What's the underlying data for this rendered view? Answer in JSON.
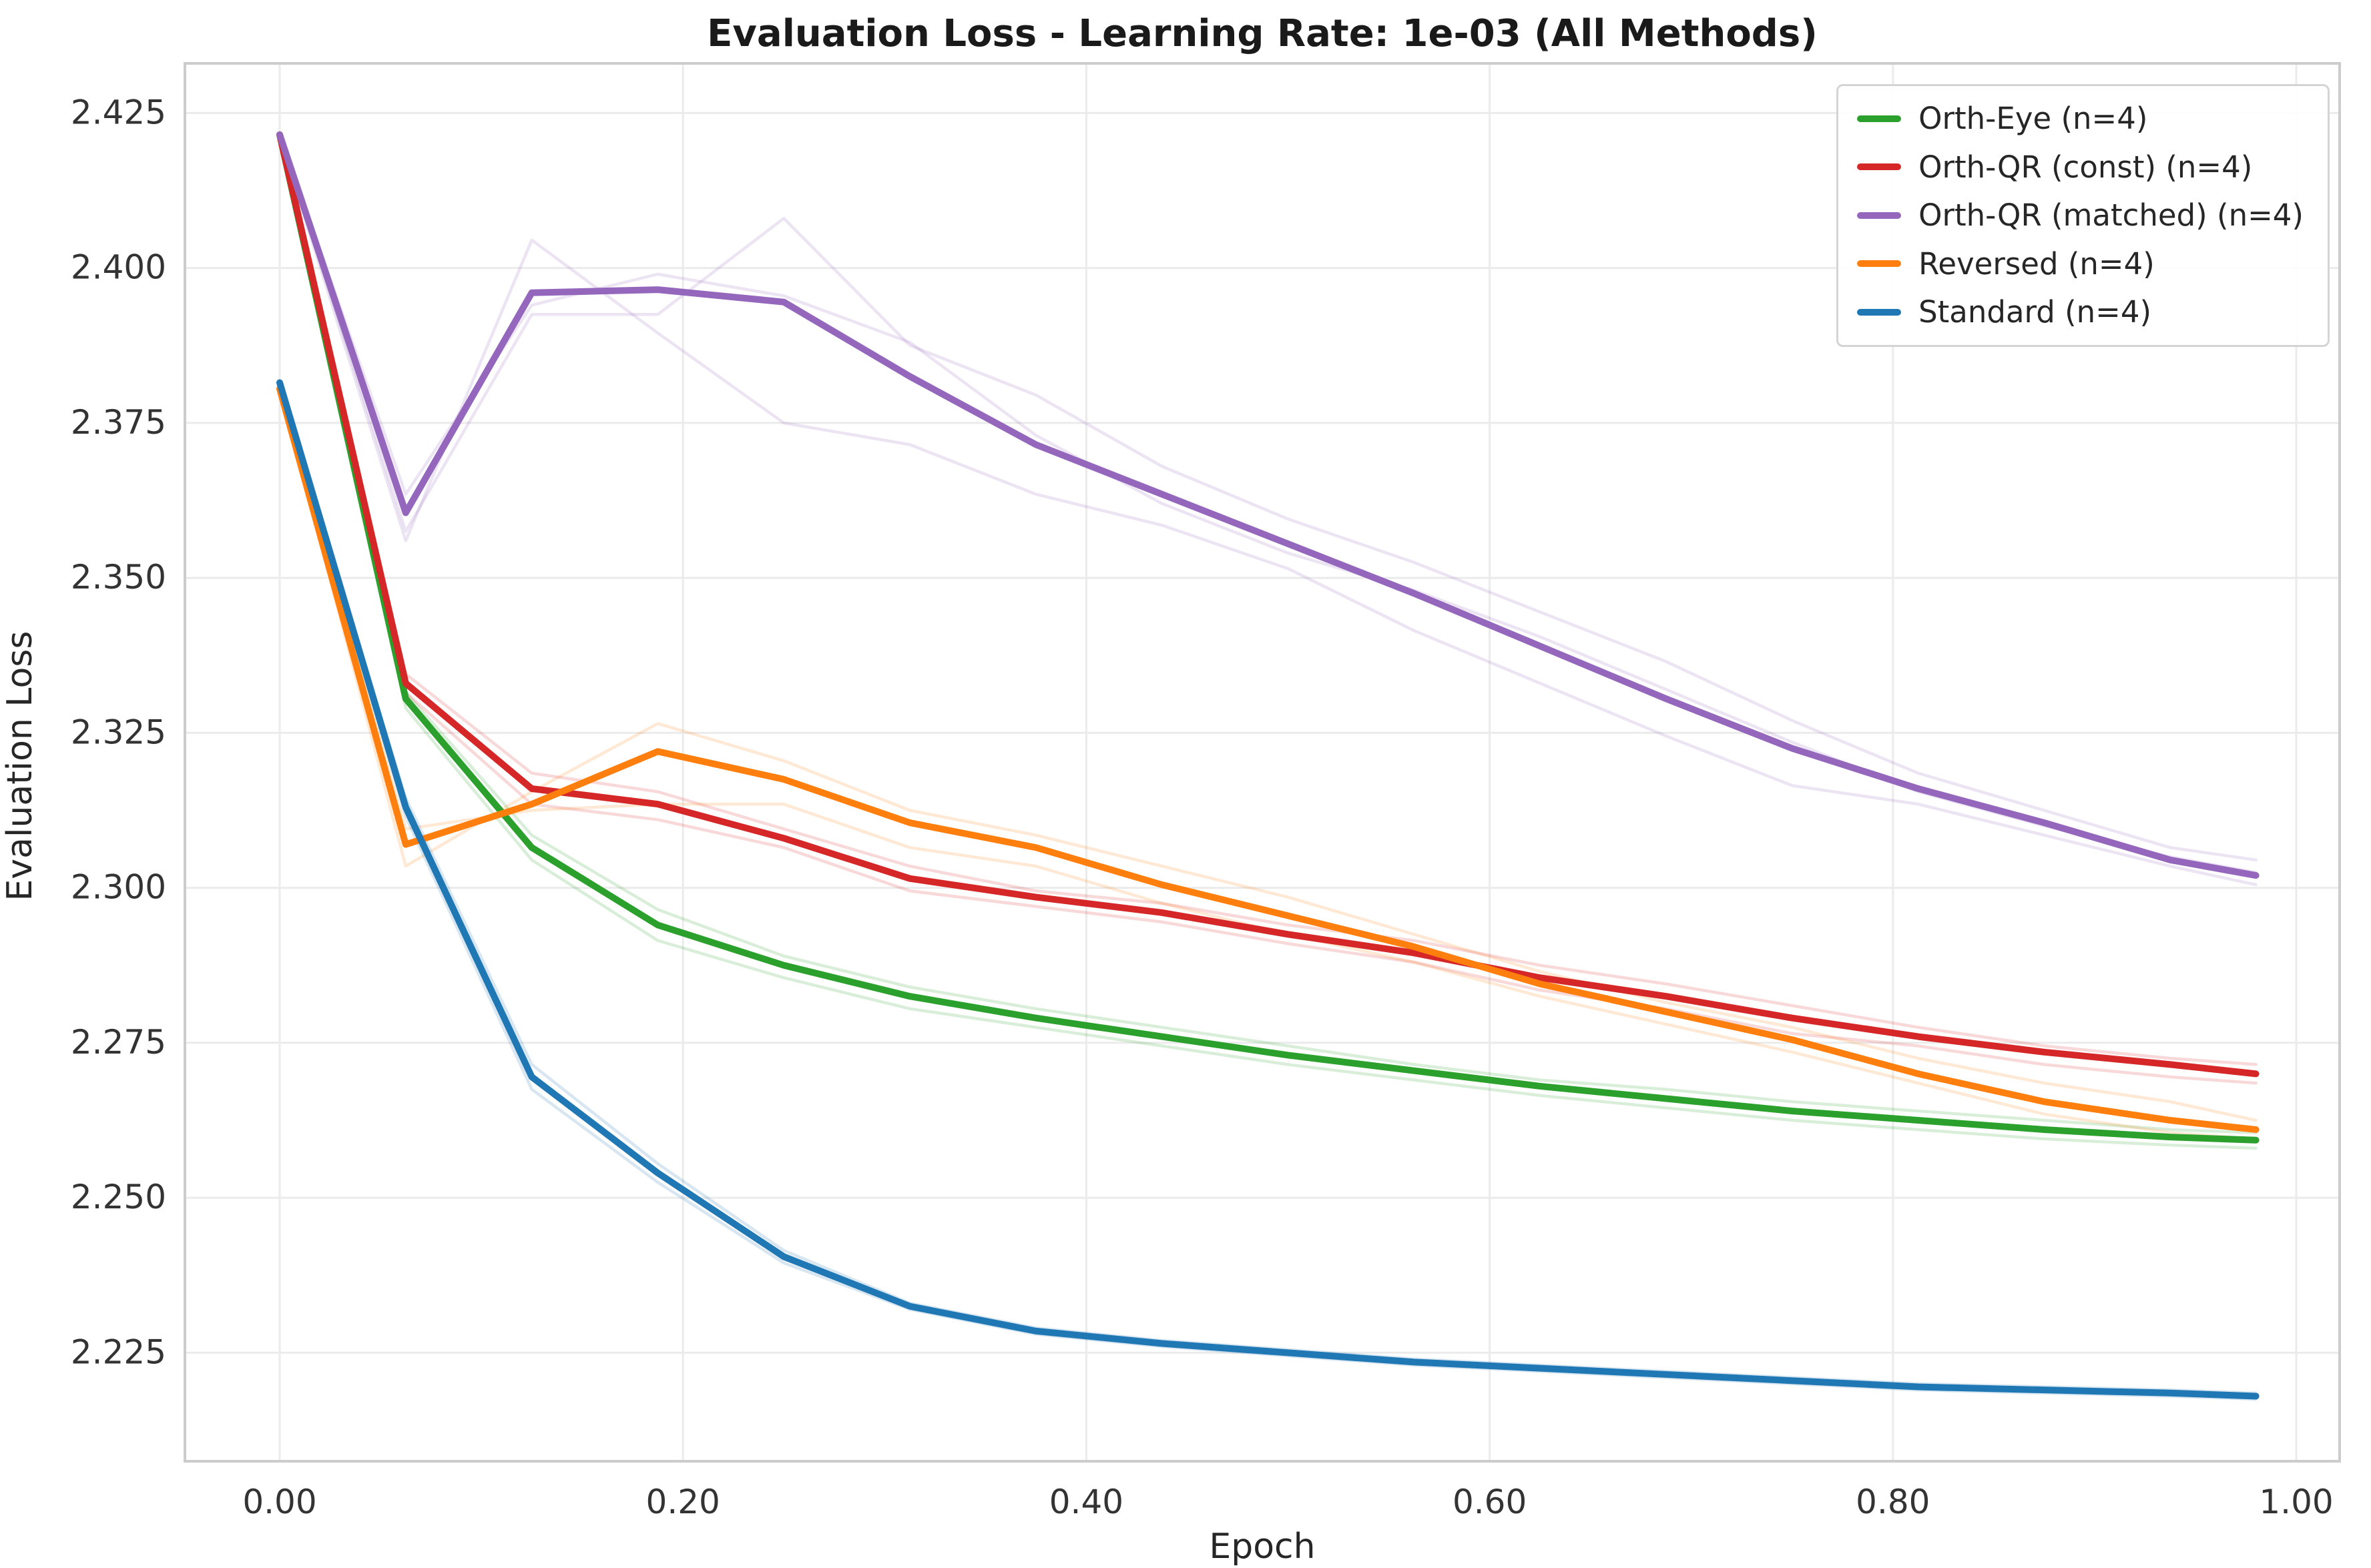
{
  "title": "Evaluation Loss - Learning Rate: 1e-03 (All Methods)",
  "axes": {
    "xlabel": "Epoch",
    "ylabel": "Evaluation Loss"
  },
  "style": {
    "background_color": "#ffffff",
    "grid_color": "#ebebeb",
    "spine_color": "#cccccc",
    "text_color": "#262626",
    "tick_label_color": "#333333",
    "legend_border_color": "#d4d4d4"
  },
  "chart_data": {
    "type": "line",
    "title": "Evaluation Loss - Learning Rate: 1e-03 (All Methods)",
    "xlabel": "Epoch",
    "ylabel": "Evaluation Loss",
    "xlim": [
      -0.047,
      1.0215
    ],
    "ylim": [
      2.2075,
      2.433
    ],
    "grid": true,
    "legend_position": "upper right",
    "x_ticks": [
      {
        "value": 0.0,
        "label": "0.00"
      },
      {
        "value": 0.2,
        "label": "0.20"
      },
      {
        "value": 0.4,
        "label": "0.40"
      },
      {
        "value": 0.6,
        "label": "0.60"
      },
      {
        "value": 0.8,
        "label": "0.80"
      },
      {
        "value": 1.0,
        "label": "1.00"
      }
    ],
    "y_ticks": [
      {
        "value": 2.425,
        "label": "2.425"
      },
      {
        "value": 2.4,
        "label": "2.400"
      },
      {
        "value": 2.375,
        "label": "2.375"
      },
      {
        "value": 2.35,
        "label": "2.350"
      },
      {
        "value": 2.325,
        "label": "2.325"
      },
      {
        "value": 2.3,
        "label": "2.300"
      },
      {
        "value": 2.275,
        "label": "2.275"
      },
      {
        "value": 2.25,
        "label": "2.250"
      },
      {
        "value": 2.225,
        "label": "2.225"
      }
    ],
    "x": [
      0.0,
      0.0625,
      0.125,
      0.1875,
      0.25,
      0.3125,
      0.375,
      0.4375,
      0.5,
      0.5625,
      0.625,
      0.6875,
      0.75,
      0.8125,
      0.875,
      0.9375,
      0.98
    ],
    "series": [
      {
        "name": "Orth-Eye (n=4)",
        "color": "#2ca02c",
        "values": [
          2.4215,
          2.3305,
          2.3065,
          2.294,
          2.2875,
          2.2825,
          2.279,
          2.276,
          2.273,
          2.2705,
          2.268,
          2.266,
          2.264,
          2.2625,
          2.261,
          2.2598,
          2.2593
        ],
        "runs": [
          [
            2.4215,
            2.3315,
            2.3085,
            2.2965,
            2.289,
            2.284,
            2.2805,
            2.2775,
            2.2745,
            2.2715,
            2.269,
            2.2675,
            2.2655,
            2.264,
            2.2625,
            2.261,
            2.2605
          ],
          [
            2.4215,
            2.329,
            2.3045,
            2.2915,
            2.2855,
            2.2805,
            2.2775,
            2.2745,
            2.2715,
            2.269,
            2.2665,
            2.2645,
            2.2625,
            2.261,
            2.2595,
            2.2585,
            2.258
          ]
        ]
      },
      {
        "name": "Orth-QR (const) (n=4)",
        "color": "#d62728",
        "values": [
          2.4215,
          2.333,
          2.316,
          2.3135,
          2.308,
          2.3015,
          2.2985,
          2.296,
          2.2925,
          2.2895,
          2.2855,
          2.2825,
          2.279,
          2.276,
          2.2735,
          2.2715,
          2.27
        ],
        "runs": [
          [
            2.4215,
            2.3345,
            2.3185,
            2.3155,
            2.3095,
            2.3035,
            2.2995,
            2.2975,
            2.294,
            2.2915,
            2.2875,
            2.2845,
            2.281,
            2.2775,
            2.2745,
            2.2725,
            2.2715
          ],
          [
            2.4215,
            2.3315,
            2.3135,
            2.311,
            2.3065,
            2.2995,
            2.297,
            2.2945,
            2.291,
            2.288,
            2.2835,
            2.2805,
            2.2765,
            2.2745,
            2.2715,
            2.2695,
            2.2685
          ]
        ]
      },
      {
        "name": "Orth-QR (matched) (n=4)",
        "color": "#9467bd",
        "values": [
          2.4215,
          2.3605,
          2.396,
          2.3965,
          2.3945,
          2.3825,
          2.3715,
          2.3635,
          2.3555,
          2.3475,
          2.339,
          2.3305,
          2.3225,
          2.316,
          2.3105,
          2.3045,
          2.302
        ],
        "runs": [
          [
            2.421,
            2.356,
            2.4045,
            2.3895,
            2.375,
            2.3715,
            2.3635,
            2.3585,
            2.3515,
            2.3415,
            2.333,
            2.3245,
            2.3165,
            2.3135,
            2.3085,
            2.3035,
            2.3005
          ],
          [
            2.4215,
            2.3575,
            2.3925,
            2.3925,
            2.408,
            2.3875,
            2.3795,
            2.368,
            2.3595,
            2.3525,
            2.3445,
            2.3365,
            2.327,
            2.3185,
            2.3125,
            2.3065,
            2.3045
          ],
          [
            2.4215,
            2.3635,
            2.394,
            2.399,
            2.3955,
            2.388,
            2.373,
            2.362,
            2.354,
            2.348,
            2.3405,
            2.332,
            2.3235,
            2.3155,
            2.31,
            2.305,
            2.3025
          ]
        ]
      },
      {
        "name": "Reversed (n=4)",
        "color": "#ff7f0e",
        "values": [
          2.3805,
          2.307,
          2.3135,
          2.322,
          2.3175,
          2.3105,
          2.3065,
          2.3005,
          2.2955,
          2.2905,
          2.2845,
          2.28,
          2.2755,
          2.27,
          2.2655,
          2.2625,
          2.261
        ],
        "runs": [
          [
            2.3805,
            2.3035,
            2.3155,
            2.3265,
            2.3205,
            2.3125,
            2.3085,
            2.3035,
            2.2985,
            2.2925,
            2.2865,
            2.2815,
            2.2775,
            2.2725,
            2.2685,
            2.2655,
            2.2625
          ],
          [
            2.3805,
            2.3095,
            2.3125,
            2.3135,
            2.3135,
            2.3065,
            2.3035,
            2.2975,
            2.2925,
            2.288,
            2.2825,
            2.278,
            2.2735,
            2.2685,
            2.2635,
            2.2605,
            2.2595
          ]
        ]
      },
      {
        "name": "Standard (n=4)",
        "color": "#1f77b4",
        "values": [
          2.3815,
          2.313,
          2.2695,
          2.254,
          2.2405,
          2.2325,
          2.2285,
          2.2265,
          2.225,
          2.2235,
          2.2225,
          2.2215,
          2.2205,
          2.2195,
          2.219,
          2.2185,
          2.218
        ],
        "runs": [
          [
            2.3815,
            2.3145,
            2.2715,
            2.2555,
            2.2415,
            2.233,
            2.229,
            2.227,
            2.2255,
            2.224,
            2.223,
            2.222,
            2.221,
            2.22,
            2.2195,
            2.219,
            2.2185
          ],
          [
            2.3815,
            2.3115,
            2.2675,
            2.2525,
            2.2395,
            2.232,
            2.228,
            2.226,
            2.2245,
            2.223,
            2.222,
            2.221,
            2.22,
            2.219,
            2.2185,
            2.218,
            2.2175
          ]
        ]
      }
    ]
  }
}
